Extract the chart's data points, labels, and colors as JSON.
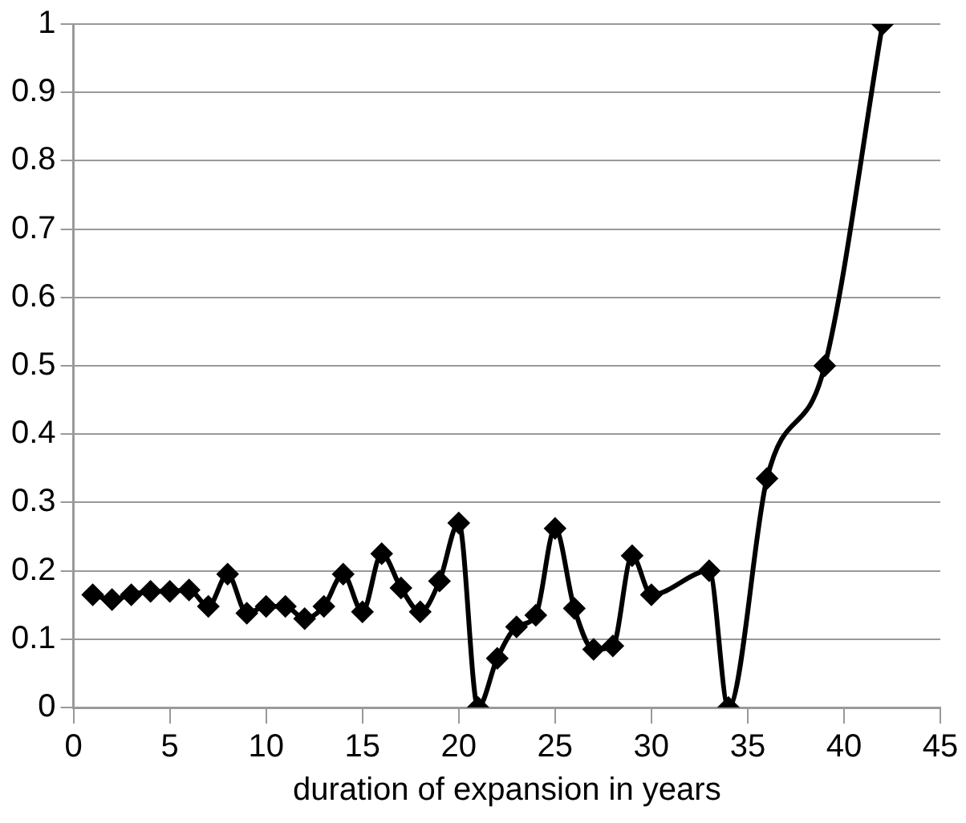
{
  "chart_data": {
    "type": "line",
    "xlabel": "duration of expansion in years",
    "x": [
      1,
      2,
      3,
      4,
      5,
      6,
      7,
      8,
      9,
      10,
      11,
      12,
      13,
      14,
      15,
      16,
      17,
      18,
      19,
      20,
      21,
      22,
      23,
      24,
      25,
      26,
      27,
      28,
      29,
      30,
      33,
      34,
      36,
      39,
      42
    ],
    "series": [
      {
        "color": "#000000",
        "values": [
          0.165,
          0.158,
          0.165,
          0.17,
          0.17,
          0.172,
          0.148,
          0.195,
          0.138,
          0.148,
          0.148,
          0.13,
          0.148,
          0.195,
          0.14,
          0.225,
          0.175,
          0.14,
          0.185,
          0.27,
          0,
          0.072,
          0.118,
          0.135,
          0.262,
          0.145,
          0.085,
          0.09,
          0.222,
          0.165,
          0.2,
          0,
          0.335,
          0.5,
          1
        ]
      }
    ],
    "xlim": [
      0,
      45
    ],
    "xticks": [
      0,
      5,
      10,
      15,
      20,
      25,
      30,
      35,
      40,
      45
    ],
    "ylim": [
      0,
      1
    ],
    "yticks": [
      0,
      0.1,
      0.2,
      0.3,
      0.4,
      0.5,
      0.6,
      0.7,
      0.8,
      0.9,
      1
    ],
    "grid": "y",
    "legend": false,
    "marker": "diamond",
    "line_style": "solid"
  }
}
